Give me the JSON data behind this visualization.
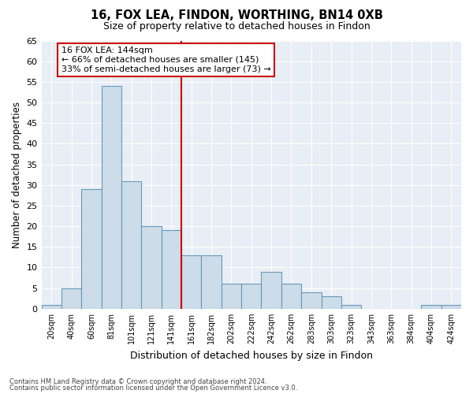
{
  "title1": "16, FOX LEA, FINDON, WORTHING, BN14 0XB",
  "title2": "Size of property relative to detached houses in Findon",
  "xlabel": "Distribution of detached houses by size in Findon",
  "ylabel": "Number of detached properties",
  "bar_labels": [
    "20sqm",
    "40sqm",
    "60sqm",
    "81sqm",
    "101sqm",
    "121sqm",
    "141sqm",
    "161sqm",
    "182sqm",
    "202sqm",
    "222sqm",
    "242sqm",
    "262sqm",
    "283sqm",
    "303sqm",
    "323sqm",
    "343sqm",
    "363sqm",
    "384sqm",
    "404sqm",
    "424sqm"
  ],
  "bar_values": [
    1,
    5,
    29,
    54,
    31,
    20,
    19,
    13,
    13,
    6,
    6,
    9,
    6,
    4,
    3,
    1,
    0,
    0,
    0,
    1,
    1
  ],
  "bar_color": "#ccdce8",
  "bar_edge_color": "#6699bb",
  "vline_x_index": 6,
  "vline_color": "#cc0000",
  "annotation_text": "16 FOX LEA: 144sqm\n← 66% of detached houses are smaller (145)\n33% of semi-detached houses are larger (73) →",
  "annotation_box_color": "#cc0000",
  "ylim": [
    0,
    65
  ],
  "yticks": [
    0,
    5,
    10,
    15,
    20,
    25,
    30,
    35,
    40,
    45,
    50,
    55,
    60,
    65
  ],
  "background_color": "#e8eef5",
  "footer1": "Contains HM Land Registry data © Crown copyright and database right 2024.",
  "footer2": "Contains public sector information licensed under the Open Government Licence v3.0."
}
